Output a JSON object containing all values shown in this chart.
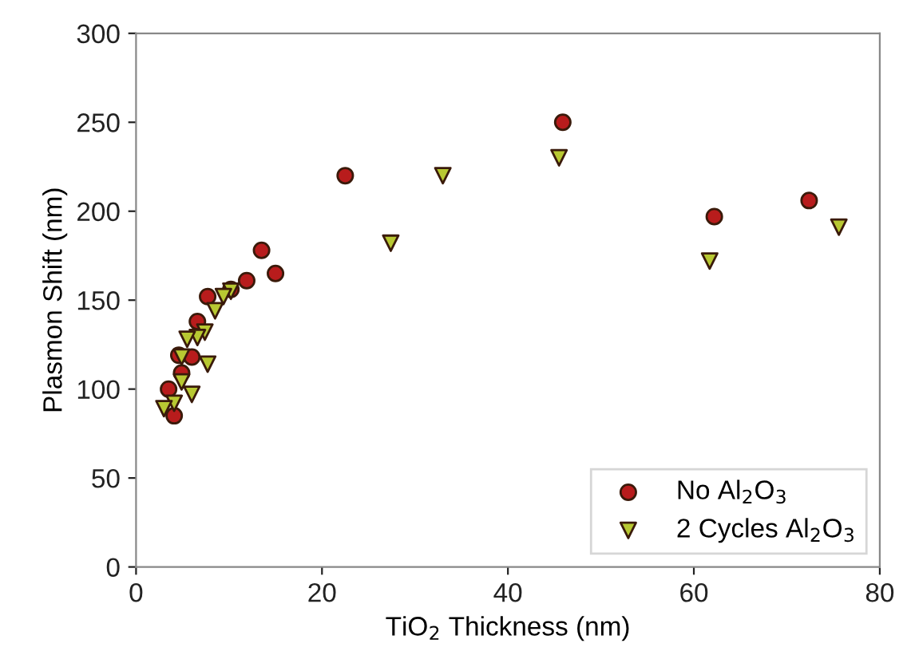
{
  "chart_data": {
    "type": "scatter",
    "xlabel": "TiO$_{2}$ Thickness (nm)",
    "ylabel": "Plasmon Shift (nm)",
    "xlim": [
      0,
      80
    ],
    "xticks": [
      0,
      20,
      40,
      60,
      80
    ],
    "ylim": [
      0,
      300
    ],
    "yticks": [
      0,
      50,
      100,
      150,
      200,
      250,
      300
    ],
    "grid": false,
    "legend": "bottom right",
    "series": [
      {
        "name": "No Al$_{2}$O$_{3}$",
        "color": "#b81c1c",
        "marker": "circle",
        "x": [
          22.5,
          13.5,
          15.0,
          11.9,
          10.2,
          7.7,
          6.6,
          4.6,
          6.0,
          4.9,
          3.5,
          4.1,
          45.9,
          62.2,
          72.4
        ],
        "values": [
          220,
          178,
          165,
          161,
          156,
          152,
          138,
          119,
          118,
          109,
          100,
          85,
          250,
          197,
          206
        ]
      },
      {
        "name": "2 Cycles Al$_{2}$O$_{3}$",
        "color": "#b8c832",
        "marker": "triangle",
        "x": [
          33.0,
          27.4,
          10.2,
          9.4,
          8.5,
          7.4,
          6.6,
          5.5,
          4.9,
          7.7,
          4.9,
          6.0,
          4.1,
          3.0,
          45.5,
          61.7,
          75.6
        ],
        "values": [
          220,
          182,
          155,
          152,
          144,
          132,
          129,
          128,
          118,
          114,
          104,
          97,
          92,
          89,
          230,
          172,
          191
        ]
      }
    ]
  }
}
